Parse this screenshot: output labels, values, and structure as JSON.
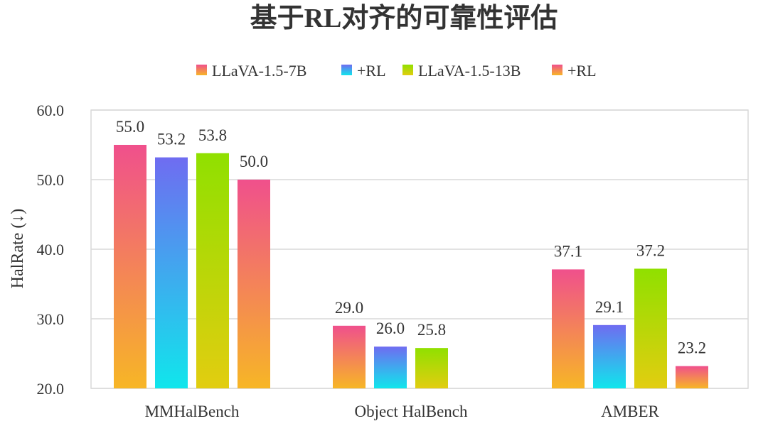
{
  "chart_data": {
    "type": "bar",
    "title": "基于RL对齐的可靠性评估",
    "ylabel": "HalRate (↓)",
    "xlabel": "",
    "categories": [
      "MMHalBench",
      "Object HalBench",
      "AMBER"
    ],
    "ylim": [
      20,
      60
    ],
    "yticks": [
      "20.0",
      "30.0",
      "40.0",
      "50.0",
      "60.0"
    ],
    "grid": true,
    "legend_position": "top",
    "series": [
      {
        "name": "LLaVA-1.5-7B",
        "values": [
          55.0,
          29.0,
          37.1
        ],
        "labels": [
          "55.0",
          "29.0",
          "37.1"
        ],
        "gradient": [
          "#f0508c",
          "#f7b626"
        ]
      },
      {
        "name": "+RL",
        "values": [
          53.2,
          26.0,
          29.1
        ],
        "labels": [
          "53.2",
          "26.0",
          "29.1"
        ],
        "gradient": [
          "#6f6cf1",
          "#10e6ec"
        ]
      },
      {
        "name": "LLaVA-1.5-13B",
        "values": [
          53.8,
          25.8,
          37.2
        ],
        "labels": [
          "53.8",
          "25.8",
          "37.2"
        ],
        "gradient": [
          "#90e000",
          "#e2cd10"
        ]
      },
      {
        "name": "+RL",
        "values": [
          50.0,
          null,
          23.2
        ],
        "labels": [
          "50.0",
          "",
          "23.2"
        ],
        "gradient": [
          "#f0508c",
          "#f7b626"
        ]
      }
    ]
  }
}
